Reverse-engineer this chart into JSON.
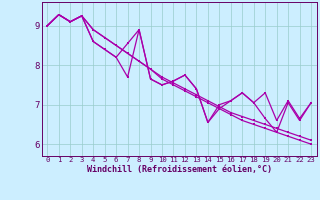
{
  "xlabel": "Windchill (Refroidissement éolien,°C)",
  "background_color": "#cceeff",
  "line_color": "#aa00aa",
  "grid_color": "#99cccc",
  "axis_color": "#660066",
  "text_color": "#660066",
  "xlim": [
    -0.5,
    23.5
  ],
  "ylim": [
    5.7,
    9.6
  ],
  "xticks": [
    0,
    1,
    2,
    3,
    4,
    5,
    6,
    7,
    8,
    9,
    10,
    11,
    12,
    13,
    14,
    15,
    16,
    17,
    18,
    19,
    20,
    21,
    22,
    23
  ],
  "yticks": [
    6,
    7,
    8,
    9
  ],
  "line_straight_top": [
    9.0,
    9.28,
    9.1,
    9.25,
    8.9,
    8.7,
    8.5,
    8.3,
    8.1,
    7.9,
    7.7,
    7.55,
    7.4,
    7.25,
    7.1,
    6.95,
    6.8,
    6.7,
    6.6,
    6.5,
    6.4,
    6.3,
    6.2,
    6.1
  ],
  "line_straight_bot": [
    9.0,
    9.28,
    9.1,
    9.25,
    8.9,
    8.7,
    8.5,
    8.3,
    8.1,
    7.9,
    7.65,
    7.5,
    7.35,
    7.2,
    7.05,
    6.9,
    6.75,
    6.6,
    6.5,
    6.4,
    6.3,
    6.2,
    6.1,
    6.0
  ],
  "line_zigzag1": [
    9.0,
    9.28,
    9.1,
    9.25,
    8.6,
    8.4,
    8.2,
    8.55,
    8.9,
    7.65,
    7.5,
    7.6,
    7.75,
    7.4,
    6.55,
    7.0,
    7.1,
    7.3,
    7.05,
    7.3,
    6.6,
    7.1,
    6.65,
    7.05
  ],
  "line_zigzag2": [
    9.0,
    9.28,
    9.1,
    9.25,
    8.6,
    8.4,
    8.2,
    7.7,
    8.9,
    7.65,
    7.5,
    7.6,
    7.75,
    7.4,
    6.55,
    6.9,
    7.1,
    7.3,
    7.05,
    6.65,
    6.3,
    7.05,
    6.6,
    7.05
  ]
}
